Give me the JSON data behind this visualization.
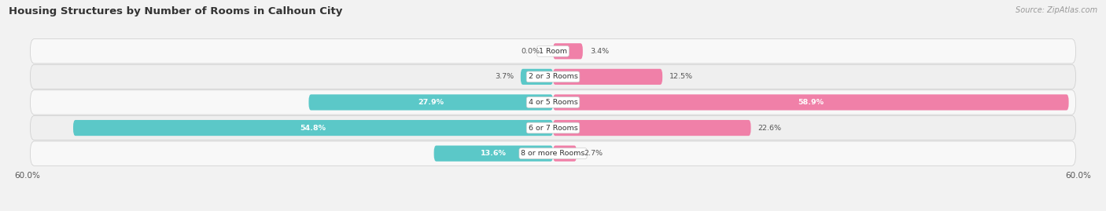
{
  "title": "Housing Structures by Number of Rooms in Calhoun City",
  "source": "Source: ZipAtlas.com",
  "categories": [
    "1 Room",
    "2 or 3 Rooms",
    "4 or 5 Rooms",
    "6 or 7 Rooms",
    "8 or more Rooms"
  ],
  "owner_values": [
    0.0,
    3.7,
    27.9,
    54.8,
    13.6
  ],
  "renter_values": [
    3.4,
    12.5,
    58.9,
    22.6,
    2.7
  ],
  "owner_color": "#5BC8C8",
  "renter_color": "#F080A8",
  "renter_color_dark": "#E8457A",
  "axis_min": -60.0,
  "axis_max": 60.0,
  "background_color": "#f2f2f2",
  "row_color_odd": "#f8f8f8",
  "row_color_even": "#efefef",
  "label_color": "#555555",
  "title_color": "#333333",
  "bar_height": 0.62
}
